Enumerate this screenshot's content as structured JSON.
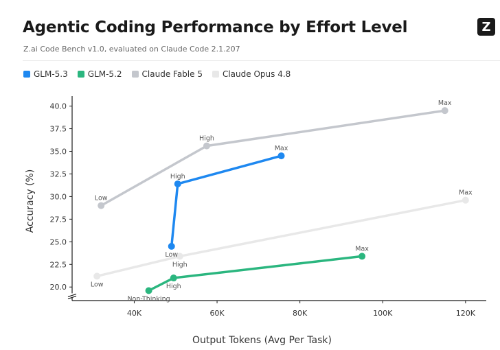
{
  "header": {
    "title": "Agentic Coding Performance by Effort Level",
    "subtitle": "Z.ai Code Bench v1.0, evaluated on Claude Code 2.1.207",
    "logo_letter": "Z"
  },
  "chart_data": {
    "type": "line",
    "xlabel": "Output Tokens (Avg Per Task)",
    "ylabel": "Accuracy (%)",
    "xlim": [
      25000,
      125000
    ],
    "ylim": [
      18.5,
      40.5
    ],
    "x_ticks": [
      40000,
      60000,
      80000,
      100000,
      120000
    ],
    "x_tick_labels": [
      "40K",
      "60K",
      "80K",
      "100K",
      "120K"
    ],
    "y_ticks": [
      20.0,
      22.5,
      25.0,
      27.5,
      30.0,
      32.5,
      35.0,
      37.5,
      40.0
    ],
    "y_tick_labels": [
      "20.0",
      "22.5",
      "25.0",
      "27.5",
      "30.0",
      "32.5",
      "35.0",
      "37.5",
      "40.0"
    ],
    "y_axis_break": true,
    "grid": false,
    "legend_position": "top-left",
    "series": [
      {
        "name": "Claude Opus 4.8",
        "color": "#e8e8e8",
        "points": [
          {
            "x": 31000,
            "y": 21.2,
            "label": "Low",
            "label_pos": "below"
          },
          {
            "x": 51000,
            "y": 23.4,
            "label": "High",
            "label_pos": "below"
          },
          {
            "x": 120000,
            "y": 29.6,
            "label": "Max",
            "label_pos": "above"
          }
        ]
      },
      {
        "name": "Claude Fable 5",
        "color": "#c4c7cd",
        "points": [
          {
            "x": 32000,
            "y": 29.0,
            "label": "Low",
            "label_pos": "above"
          },
          {
            "x": 57500,
            "y": 35.6,
            "label": "High",
            "label_pos": "above"
          },
          {
            "x": 115000,
            "y": 39.5,
            "label": "Max",
            "label_pos": "above"
          }
        ]
      },
      {
        "name": "GLM-5.2",
        "color": "#2bb67f",
        "points": [
          {
            "x": 43500,
            "y": 19.6,
            "label": "Non-Thinking",
            "label_pos": "below"
          },
          {
            "x": 49500,
            "y": 21.0,
            "label": "High",
            "label_pos": "below"
          },
          {
            "x": 95000,
            "y": 23.4,
            "label": "Max",
            "label_pos": "above"
          }
        ]
      },
      {
        "name": "GLM-5.3",
        "color": "#1e88f0",
        "points": [
          {
            "x": 49000,
            "y": 24.5,
            "label": "Low",
            "label_pos": "below"
          },
          {
            "x": 50500,
            "y": 31.4,
            "label": "High",
            "label_pos": "above"
          },
          {
            "x": 75500,
            "y": 34.5,
            "label": "Max",
            "label_pos": "above"
          }
        ]
      }
    ],
    "legend_order": [
      "GLM-5.3",
      "GLM-5.2",
      "Claude Fable 5",
      "Claude Opus 4.8"
    ]
  }
}
